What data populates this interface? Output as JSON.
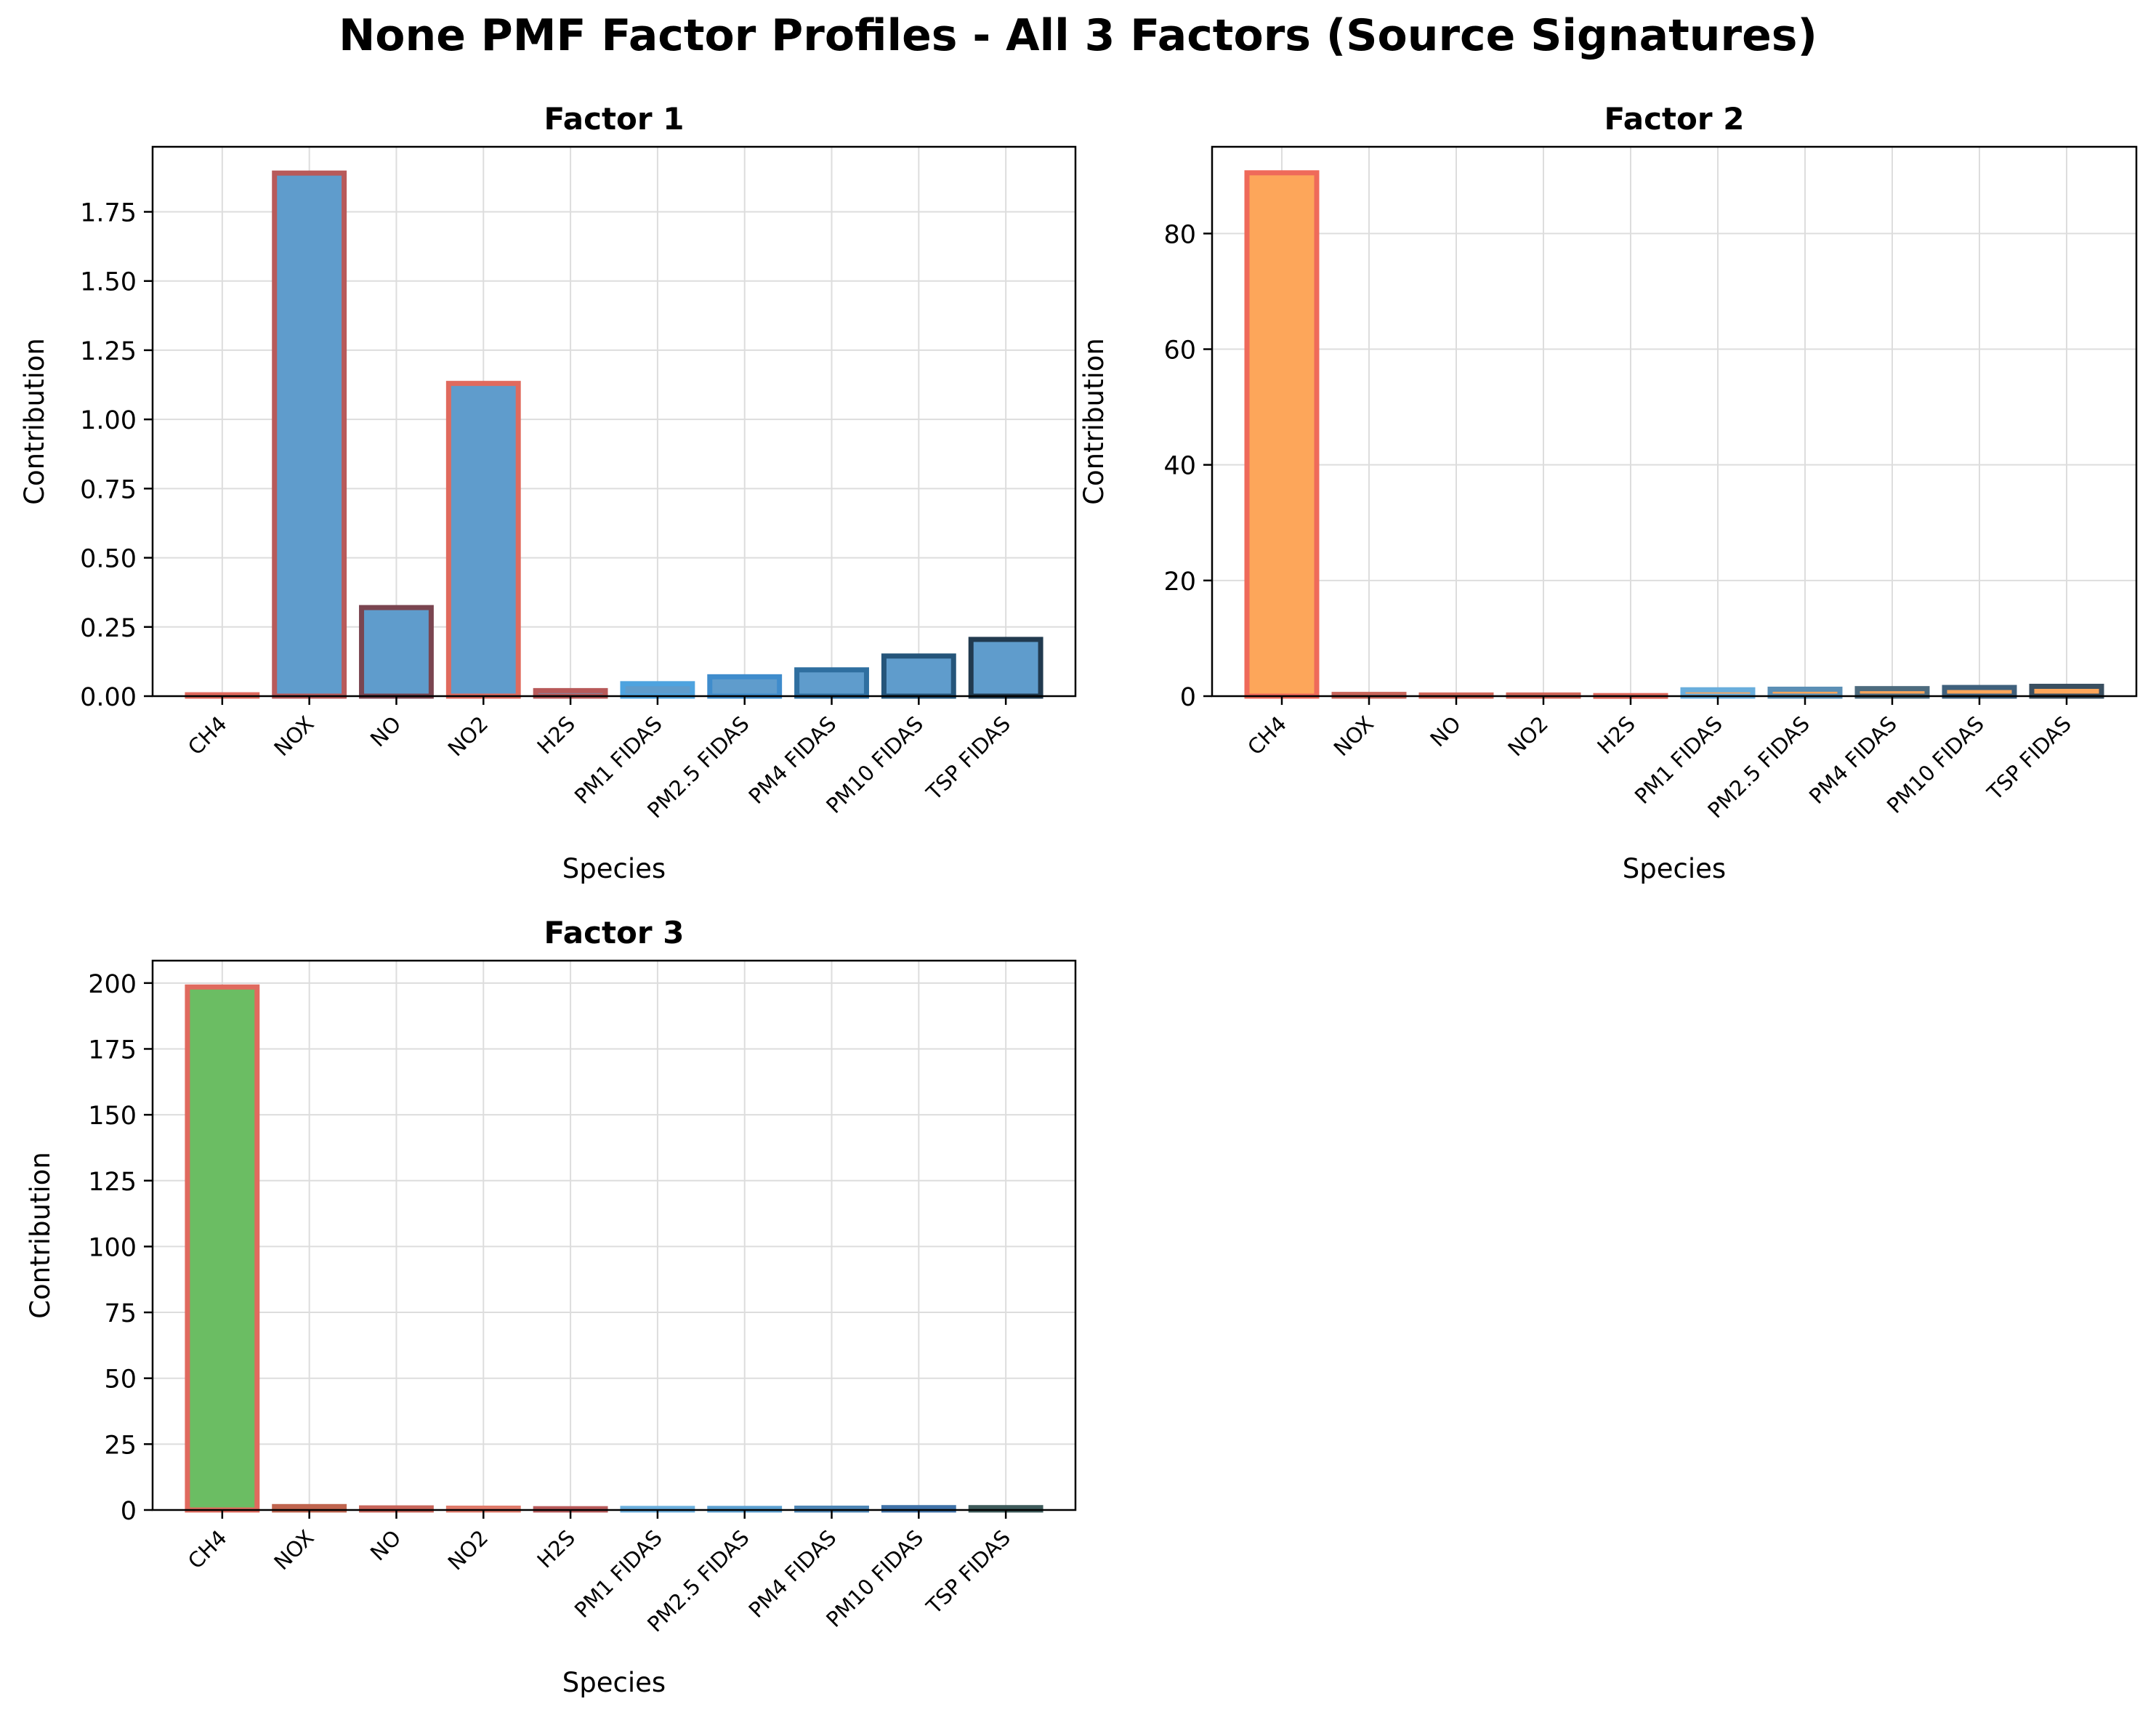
{
  "figure": {
    "title": "None PMF Factor Profiles - All 3 Factors (Source Signatures)"
  },
  "chart_data": [
    {
      "type": "bar",
      "title": "Factor 1",
      "xlabel": "Species",
      "ylabel": "Contribution",
      "categories": [
        "CH4",
        "NOX",
        "NO",
        "NO2",
        "H2S",
        "PM1 FIDAS",
        "PM2.5 FIDAS",
        "PM4 FIDAS",
        "PM10 FIDAS",
        "TSP FIDAS"
      ],
      "values": [
        0.005,
        1.89,
        0.32,
        1.13,
        0.02,
        0.045,
        0.07,
        0.095,
        0.145,
        0.205
      ],
      "ylim": [
        0,
        1.985
      ],
      "yticks": [
        0,
        0.25,
        0.5,
        0.75,
        1.0,
        1.25,
        1.5,
        1.75
      ],
      "ytick_labels": [
        "0.00",
        "0.25",
        "0.50",
        "0.75",
        "1.00",
        "1.25",
        "1.50",
        "1.75"
      ],
      "bar_fill": [
        "#5f9ccc",
        "#5f9ccc",
        "#5f9ccc",
        "#5f9ccc",
        "#5f9ccc",
        "#5f9ccc",
        "#5f9ccc",
        "#5f9ccc",
        "#5f9ccc",
        "#5f9ccc"
      ],
      "bar_edge": [
        "#e06a5e",
        "#b85a5a",
        "#7a4550",
        "#e06a5e",
        "#b85a5a",
        "#4ea3df",
        "#3f8ccc",
        "#2f6fa0",
        "#25557a",
        "#213a4f"
      ],
      "grid": true
    },
    {
      "type": "bar",
      "title": "Factor 2",
      "xlabel": "Species",
      "ylabel": "Contribution",
      "categories": [
        "CH4",
        "NOX",
        "NO",
        "NO2",
        "H2S",
        "PM1 FIDAS",
        "PM2.5 FIDAS",
        "PM4 FIDAS",
        "PM10 FIDAS",
        "TSP FIDAS"
      ],
      "values": [
        90.5,
        0.3,
        0.2,
        0.2,
        0.1,
        1.1,
        1.2,
        1.3,
        1.5,
        1.7
      ],
      "ylim": [
        0,
        95.0
      ],
      "yticks": [
        0,
        20,
        40,
        60,
        80
      ],
      "ytick_labels": [
        "0",
        "20",
        "40",
        "60",
        "80"
      ],
      "bar_fill": [
        "#fda65a",
        "#fda65a",
        "#fda65a",
        "#fda65a",
        "#fda65a",
        "#fda65a",
        "#fda65a",
        "#fda65a",
        "#fda65a",
        "#fda65a"
      ],
      "bar_edge": [
        "#ef6a5a",
        "#c8655a",
        "#d0675a",
        "#d0675a",
        "#e06a5e",
        "#6aaedc",
        "#5b8fb5",
        "#4d6b7e",
        "#3f607c",
        "#3a4f60"
      ],
      "grid": true
    },
    {
      "type": "bar",
      "title": "Factor 3",
      "xlabel": "Species",
      "ylabel": "Contribution",
      "categories": [
        "CH4",
        "NOX",
        "NO",
        "NO2",
        "H2S",
        "PM1 FIDAS",
        "PM2.5 FIDAS",
        "PM4 FIDAS",
        "PM10 FIDAS",
        "TSP FIDAS"
      ],
      "values": [
        198.5,
        1.3,
        0.8,
        0.7,
        0.5,
        0.6,
        0.6,
        0.7,
        0.9,
        0.9
      ],
      "ylim": [
        0,
        208.5
      ],
      "yticks": [
        0,
        25,
        50,
        75,
        100,
        125,
        150,
        175,
        200
      ],
      "ytick_labels": [
        "0",
        "25",
        "50",
        "75",
        "100",
        "125",
        "150",
        "175",
        "200"
      ],
      "bar_fill": [
        "#6bbd63",
        "#6bbd63",
        "#6bbd63",
        "#6bbd63",
        "#6bbd63",
        "#6bbd63",
        "#6bbd63",
        "#6bbd63",
        "#6bbd63",
        "#6bbd63"
      ],
      "bar_edge": [
        "#e06a5e",
        "#c0654f",
        "#c8655a",
        "#e07a6a",
        "#b85a5a",
        "#6aaedc",
        "#5b9fd0",
        "#4d85b5",
        "#3f72a8",
        "#3d5a5a"
      ],
      "grid": true
    }
  ]
}
